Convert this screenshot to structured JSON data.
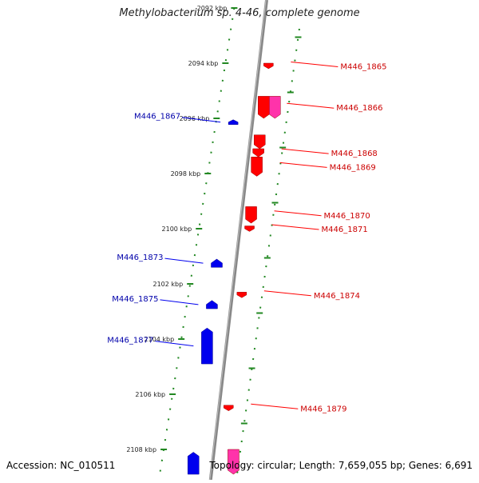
{
  "title": "Methylobacterium sp. 4-46, complete genome",
  "footer": {
    "accession": "Accession: NC_010511",
    "summary": "Topology: circular; Length: 7,659,055 bp; Genes: 6,691"
  },
  "colors": {
    "forward_gene": "#ff0000",
    "forward_gene_alt": "#ff33aa",
    "reverse_gene": "#0000ee",
    "backbone": "#888888",
    "tick_track": "#228822",
    "forward_label": "#cc0000",
    "reverse_label": "#0000aa"
  },
  "kbp_ticks": [
    {
      "pos": 2092,
      "label": "2092 kbp"
    },
    {
      "pos": 2094,
      "label": "2094 kbp"
    },
    {
      "pos": 2096,
      "label": "2096 kbp"
    },
    {
      "pos": 2098,
      "label": "2098 kbp"
    },
    {
      "pos": 2100,
      "label": "2100 kbp"
    },
    {
      "pos": 2102,
      "label": "2102 kbp"
    },
    {
      "pos": 2104,
      "label": "2104 kbp"
    },
    {
      "pos": 2106,
      "label": "2106 kbp"
    },
    {
      "pos": 2108,
      "label": "2108 kbp"
    }
  ],
  "genes": [
    {
      "name": "M446_1865",
      "strand": "+",
      "start": 2094.0,
      "end": 2094.2,
      "color": "red"
    },
    {
      "name": "M446_1866",
      "strand": "+",
      "start": 2095.2,
      "end": 2096.0,
      "color": "red"
    },
    {
      "name": "",
      "strand": "+",
      "start": 2095.2,
      "end": 2096.0,
      "color": "pink"
    },
    {
      "name": "M446_1867",
      "strand": "-",
      "start": 2096.05,
      "end": 2096.2,
      "color": "blue"
    },
    {
      "name": "",
      "strand": "+",
      "start": 2096.6,
      "end": 2097.1,
      "color": "red"
    },
    {
      "name": "M446_1868",
      "strand": "+",
      "start": 2097.1,
      "end": 2097.4,
      "color": "red"
    },
    {
      "name": "M446_1869",
      "strand": "+",
      "start": 2097.4,
      "end": 2098.1,
      "color": "red"
    },
    {
      "name": "M446_1870",
      "strand": "+",
      "start": 2099.2,
      "end": 2099.8,
      "color": "red"
    },
    {
      "name": "M446_1871",
      "strand": "+",
      "start": 2099.9,
      "end": 2100.1,
      "color": "red"
    },
    {
      "name": "M446_1873",
      "strand": "-",
      "start": 2101.1,
      "end": 2101.4,
      "color": "blue"
    },
    {
      "name": "M446_1874",
      "strand": "+",
      "start": 2102.3,
      "end": 2102.5,
      "color": "red"
    },
    {
      "name": "M446_1875",
      "strand": "-",
      "start": 2102.6,
      "end": 2102.9,
      "color": "blue"
    },
    {
      "name": "M446_1877",
      "strand": "-",
      "start": 2103.6,
      "end": 2104.9,
      "color": "blue"
    },
    {
      "name": "M446_1879",
      "strand": "+",
      "start": 2106.4,
      "end": 2106.6,
      "color": "red"
    },
    {
      "name": "",
      "strand": "+",
      "start": 2108.0,
      "end": 2108.9,
      "color": "pink"
    },
    {
      "name": "",
      "strand": "-",
      "start": 2108.1,
      "end": 2108.9,
      "color": "blue"
    }
  ]
}
